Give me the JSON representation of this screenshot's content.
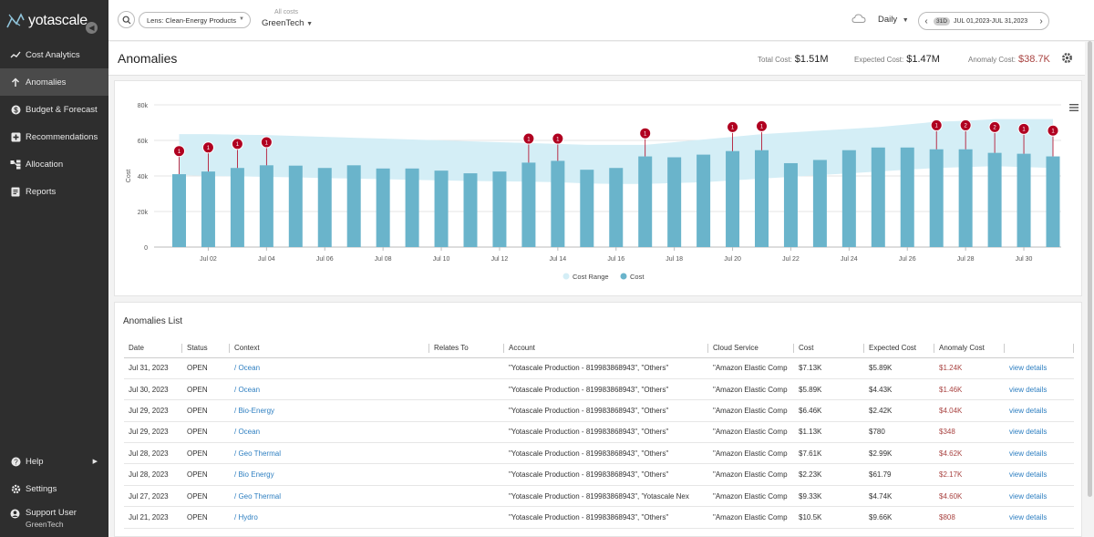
{
  "sidebar": {
    "brand": "yotascale",
    "items": [
      {
        "label": "Cost Analytics",
        "icon": "trend-line-icon"
      },
      {
        "label": "Anomalies",
        "icon": "arrow-up-icon",
        "active": true
      },
      {
        "label": "Budget & Forecast",
        "icon": "dollar-icon"
      },
      {
        "label": "Recommendations",
        "icon": "plus-box-icon"
      },
      {
        "label": "Allocation",
        "icon": "allocation-icon"
      },
      {
        "label": "Reports",
        "icon": "document-icon"
      }
    ],
    "bottom": {
      "help": "Help",
      "settings": "Settings",
      "user_name": "Support User",
      "user_org": "GreenTech"
    }
  },
  "header": {
    "lens": "Lens: Clean-Energy Products",
    "costs_label": "All costs",
    "costs_value": "GreenTech",
    "granularity": "Daily",
    "date_badge": "31D",
    "date_range": "JUL 01,2023-JUL 31,2023"
  },
  "titlebar": {
    "title": "Anomalies",
    "total_label": "Total Cost:",
    "total_value": "$1.51M",
    "expected_label": "Expected Cost:",
    "expected_value": "$1.47M",
    "anomaly_label": "Anomaly Cost:",
    "anomaly_value": "$38.7K"
  },
  "colors": {
    "bar": "#6ab4cb",
    "range": "#d4eef6",
    "anomaly": "#b00020",
    "link": "#2e7fc1"
  },
  "chart_data": {
    "type": "bar",
    "ylabel": "Cost",
    "ylim": [
      0,
      80000
    ],
    "yticks": [
      "0",
      "20k",
      "40k",
      "60k",
      "80k"
    ],
    "x_ticks": [
      "Jul 02",
      "Jul 04",
      "Jul 06",
      "Jul 08",
      "Jul 10",
      "Jul 12",
      "Jul 14",
      "Jul 16",
      "Jul 18",
      "Jul 20",
      "Jul 22",
      "Jul 24",
      "Jul 26",
      "Jul 28",
      "Jul 30"
    ],
    "days": [
      1,
      2,
      3,
      4,
      5,
      6,
      7,
      8,
      9,
      10,
      11,
      12,
      13,
      14,
      15,
      16,
      17,
      18,
      19,
      20,
      21,
      22,
      23,
      24,
      25,
      26,
      27,
      28,
      29,
      30,
      31
    ],
    "values": [
      41000,
      42500,
      44500,
      46000,
      45800,
      44500,
      46000,
      44200,
      44200,
      43000,
      41500,
      42500,
      47500,
      48500,
      43500,
      44500,
      51000,
      50500,
      52000,
      54000,
      54500,
      47200,
      49000,
      54500,
      56000,
      56000,
      55000,
      55000,
      53000,
      52500,
      51000
    ],
    "range_upper": [
      63500,
      63500,
      63200,
      63000,
      62500,
      62000,
      61500,
      61000,
      60500,
      60000,
      59500,
      59000,
      58500,
      58000,
      57500,
      57500,
      57500,
      59000,
      60500,
      62000,
      63500,
      64500,
      65500,
      66500,
      67500,
      69000,
      70500,
      71000,
      72000,
      72000,
      72000
    ],
    "range_lower": [
      40500,
      40000,
      39800,
      39500,
      39200,
      38800,
      38500,
      38200,
      37800,
      37500,
      37200,
      37000,
      36800,
      36500,
      35800,
      35500,
      35500,
      36000,
      36500,
      37500,
      38500,
      39500,
      40500,
      41500,
      42500,
      43500,
      44500,
      45000,
      45500,
      45000,
      44500
    ],
    "anomalies": [
      {
        "day": 1,
        "count": "1",
        "value": 54000
      },
      {
        "day": 2,
        "count": "1",
        "value": 56000
      },
      {
        "day": 3,
        "count": "1",
        "value": 58000
      },
      {
        "day": 4,
        "count": "1",
        "value": 59000
      },
      {
        "day": 13,
        "count": "1",
        "value": 61000
      },
      {
        "day": 14,
        "count": "1",
        "value": 61000
      },
      {
        "day": 17,
        "count": "1",
        "value": 64000
      },
      {
        "day": 20,
        "count": "1",
        "value": 67500
      },
      {
        "day": 21,
        "count": "1",
        "value": 68000
      },
      {
        "day": 27,
        "count": "1",
        "value": 68500
      },
      {
        "day": 28,
        "count": "2",
        "value": 68500
      },
      {
        "day": 29,
        "count": "2",
        "value": 67500
      },
      {
        "day": 30,
        "count": "1",
        "value": 66500
      },
      {
        "day": 31,
        "count": "1",
        "value": 65500
      }
    ],
    "legend": [
      "Cost Range",
      "Cost"
    ]
  },
  "list": {
    "title": "Anomalies List",
    "columns": [
      "Date",
      "Status",
      "Context",
      "Relates To",
      "Account",
      "Cloud Service",
      "Cost",
      "Expected Cost",
      "Anomaly Cost",
      ""
    ],
    "rows": [
      {
        "date": "Jul 31, 2023",
        "status": "OPEN",
        "context": "/ Ocean",
        "relates": "",
        "account": "\"Yotascale Production - 819983868943\", \"Others\"",
        "service": "\"Amazon Elastic Comp",
        "cost": "$7.13K",
        "expected": "$5.89K",
        "anomaly": "$1.24K",
        "action": "view details"
      },
      {
        "date": "Jul 30, 2023",
        "status": "OPEN",
        "context": "/ Ocean",
        "relates": "",
        "account": "\"Yotascale Production - 819983868943\", \"Others\"",
        "service": "\"Amazon Elastic Comp",
        "cost": "$5.89K",
        "expected": "$4.43K",
        "anomaly": "$1.46K",
        "action": "view details"
      },
      {
        "date": "Jul 29, 2023",
        "status": "OPEN",
        "context": "/ Bio-Energy",
        "relates": "",
        "account": "\"Yotascale Production - 819983868943\", \"Others\"",
        "service": "\"Amazon Elastic Comp",
        "cost": "$6.46K",
        "expected": "$2.42K",
        "anomaly": "$4.04K",
        "action": "view details"
      },
      {
        "date": "Jul 29, 2023",
        "status": "OPEN",
        "context": "/ Ocean",
        "relates": "",
        "account": "\"Yotascale Production - 819983868943\", \"Others\"",
        "service": "\"Amazon Elastic Comp",
        "cost": "$1.13K",
        "expected": "$780",
        "anomaly": "$348",
        "action": "view details"
      },
      {
        "date": "Jul 28, 2023",
        "status": "OPEN",
        "context": "/ Geo Thermal",
        "relates": "",
        "account": "\"Yotascale Production - 819983868943\", \"Others\"",
        "service": "\"Amazon Elastic Comp",
        "cost": "$7.61K",
        "expected": "$2.99K",
        "anomaly": "$4.62K",
        "action": "view details"
      },
      {
        "date": "Jul 28, 2023",
        "status": "OPEN",
        "context": "/ Bio Energy",
        "relates": "",
        "account": "\"Yotascale Production - 819983868943\", \"Others\"",
        "service": "\"Amazon Elastic Comp",
        "cost": "$2.23K",
        "expected": "$61.79",
        "anomaly": "$2.17K",
        "action": "view details"
      },
      {
        "date": "Jul 27, 2023",
        "status": "OPEN",
        "context": "/ Geo Thermal",
        "relates": "",
        "account": "\"Yotascale Production - 819983868943\", 'Yotascale Nex",
        "service": "\"Amazon Elastic Comp",
        "cost": "$9.33K",
        "expected": "$4.74K",
        "anomaly": "$4.60K",
        "action": "view details"
      },
      {
        "date": "Jul 21, 2023",
        "status": "OPEN",
        "context": "/ Hydro",
        "relates": "",
        "account": "\"Yotascale Production - 819983868943\", \"Others\"",
        "service": "\"Amazon Elastic Comp",
        "cost": "$10.5K",
        "expected": "$9.66K",
        "anomaly": "$808",
        "action": "view details"
      }
    ]
  }
}
